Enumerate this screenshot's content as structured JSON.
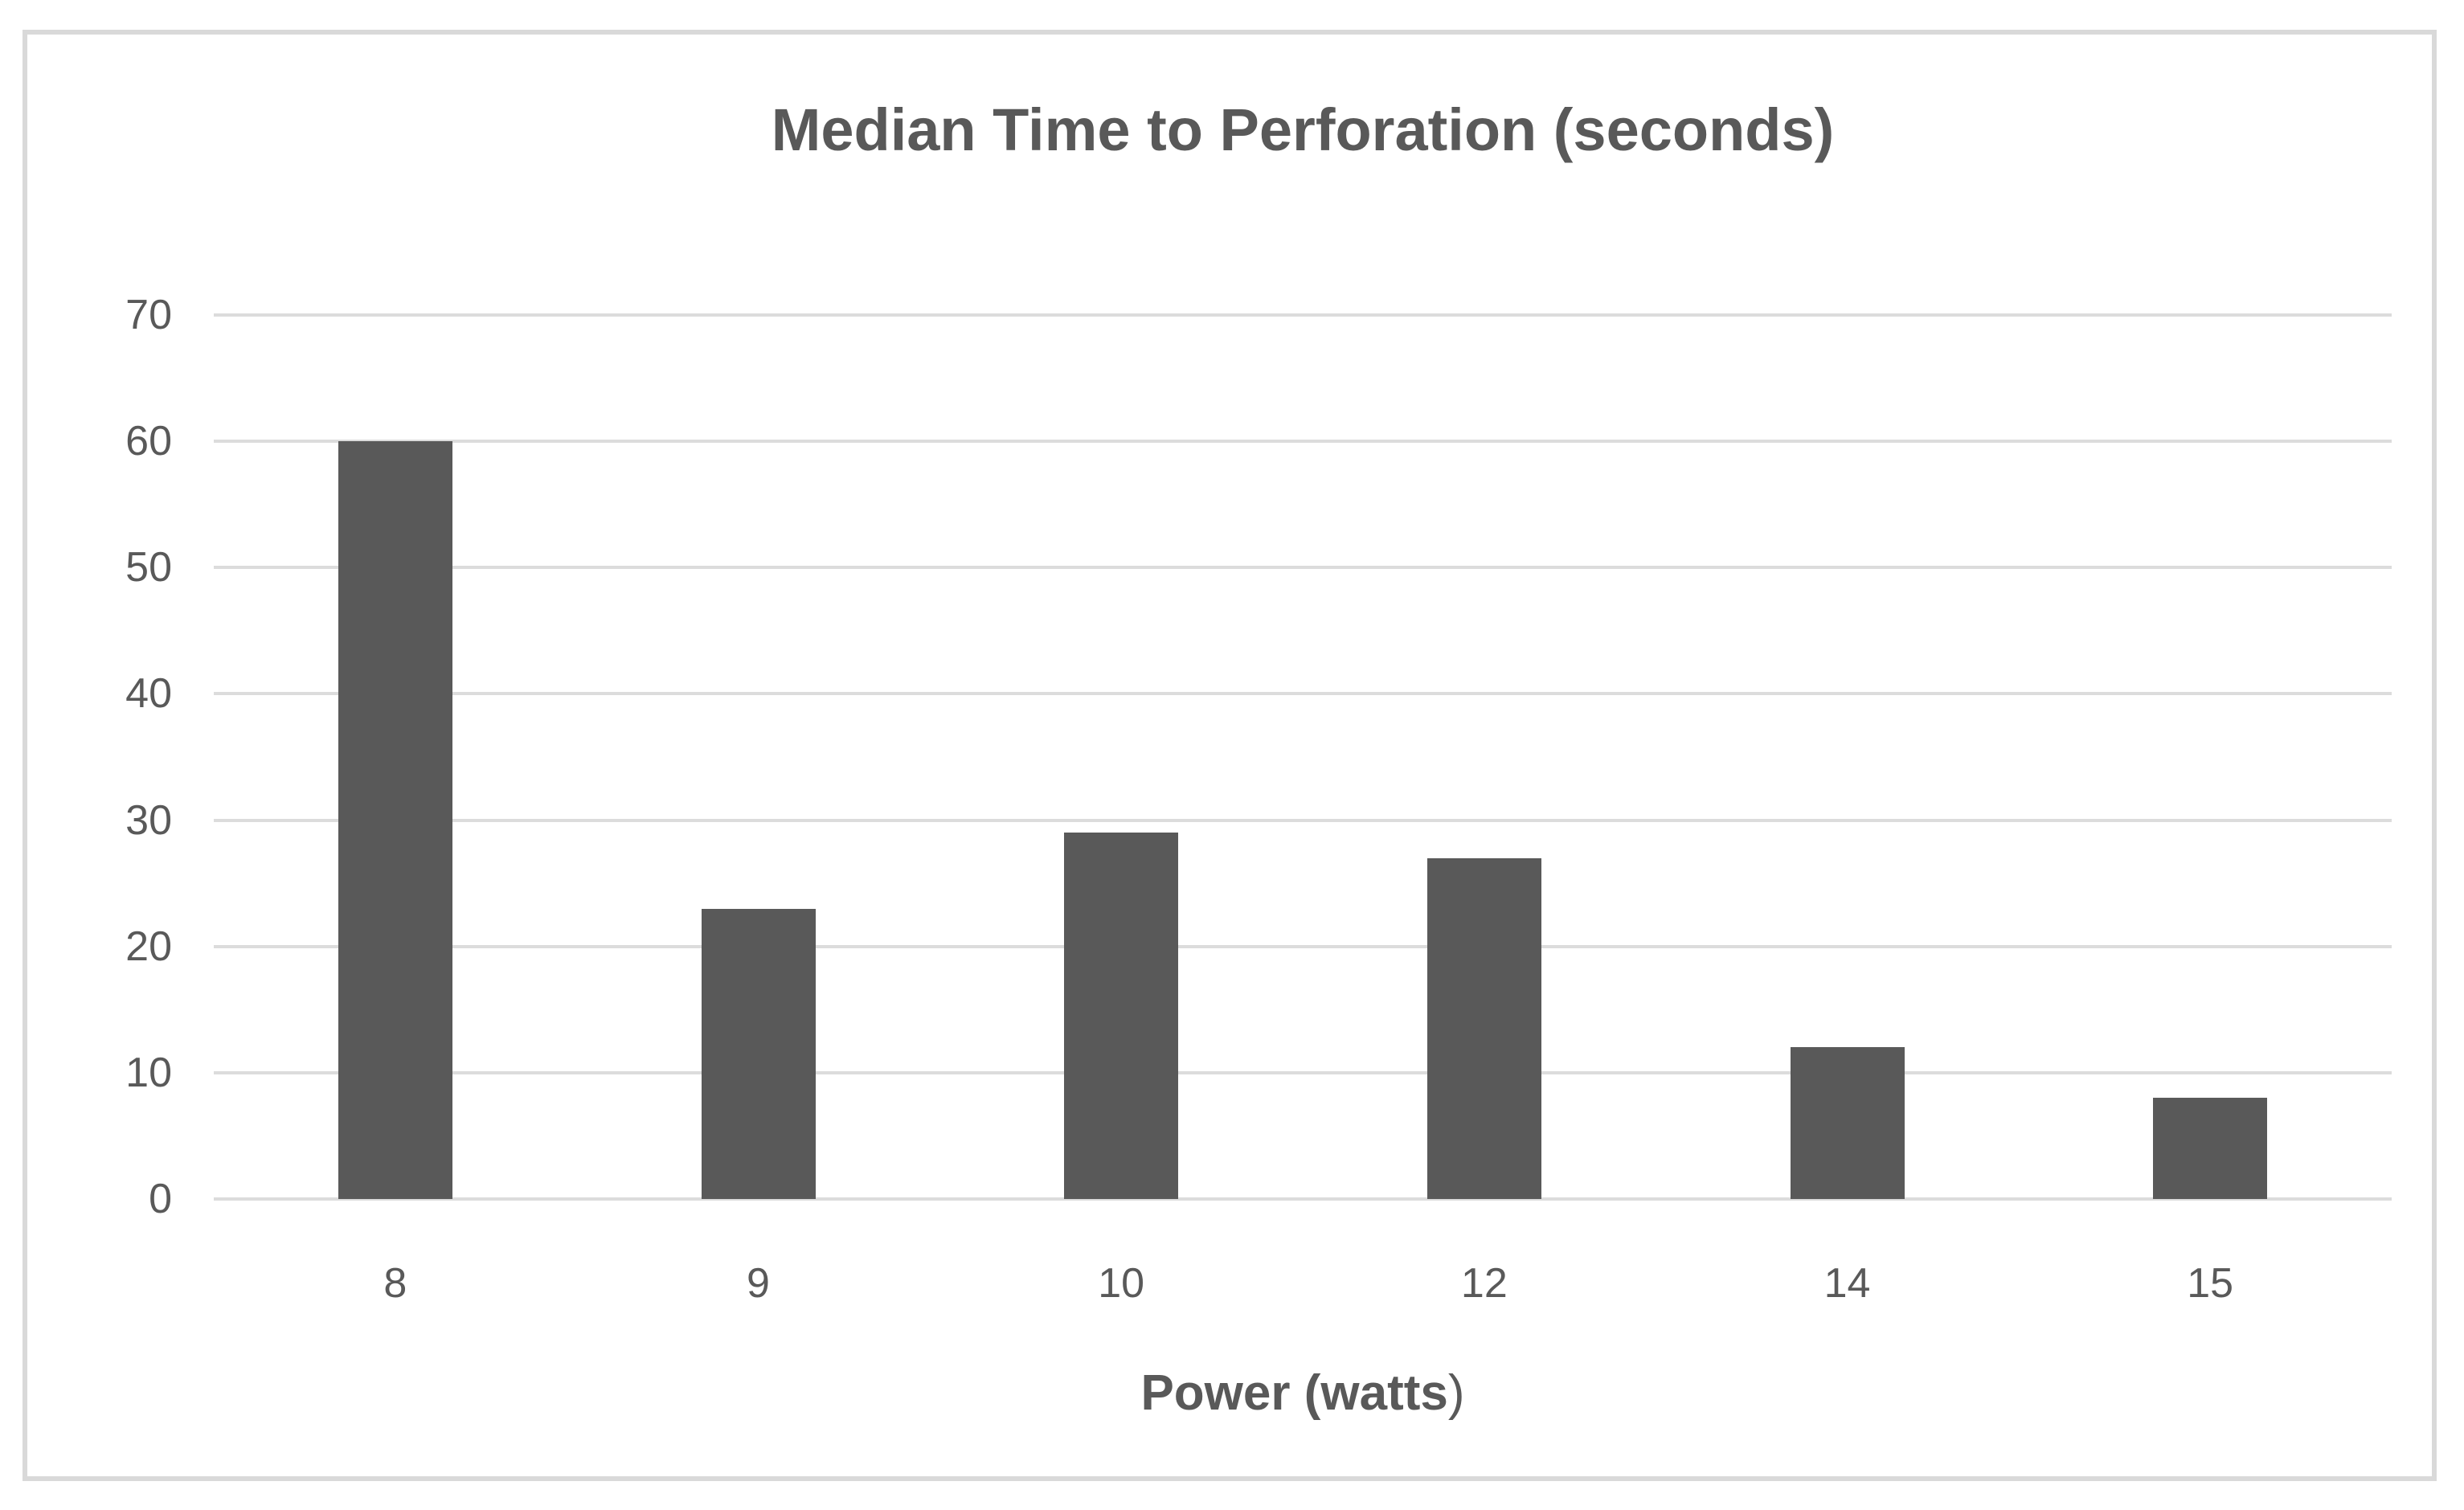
{
  "chart_data": {
    "type": "bar",
    "title": "Median Time to Perforation (seconds)",
    "xlabel": "Power (watts)",
    "xlabel_bold": "Power (watts",
    "xlabel_tail": ")",
    "ylabel": "",
    "categories": [
      "8",
      "9",
      "10",
      "12",
      "14",
      "15"
    ],
    "values": [
      60,
      23,
      29,
      27,
      12,
      8
    ],
    "yticks": [
      0,
      10,
      20,
      30,
      40,
      50,
      60,
      70
    ],
    "ylim": [
      0,
      70
    ],
    "grid": true,
    "legend": "none",
    "colors": {
      "bar": "#595959",
      "text": "#595959",
      "gridline": "#dcdcdc",
      "frame_border": "#d9d9d9",
      "background": "#ffffff"
    }
  }
}
